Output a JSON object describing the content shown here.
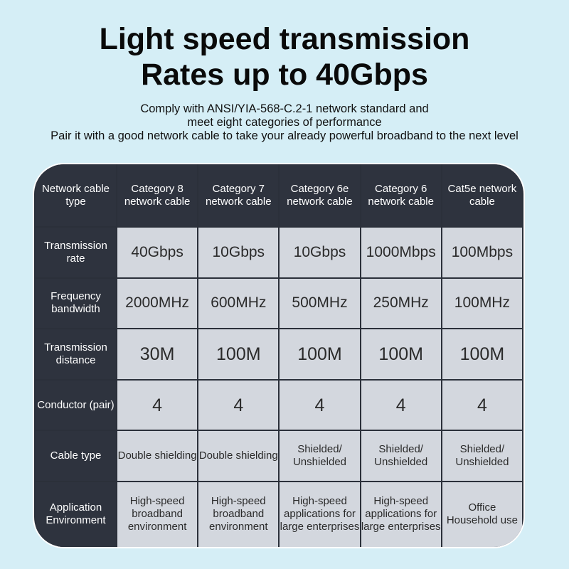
{
  "title": {
    "line1": "Light speed transmission",
    "line2": "Rates up to 40Gbps"
  },
  "subtitle": {
    "line1": "Comply with ANSI/YIA-568-C.2-1 network standard and",
    "line2": "meet eight categories of performance",
    "line3": "Pair it with a good network cable to take your already powerful broadband to the next level"
  },
  "table": {
    "header": [
      "Network cable type",
      "Category 8 network cable",
      "Category 7 network cable",
      "Category 6e network cable",
      "Category 6 network cable",
      "Cat5e network cable"
    ],
    "rows": [
      {
        "label": "Transmission rate",
        "values": [
          "40Gbps",
          "10Gbps",
          "10Gbps",
          "1000Mbps",
          "100Mbps"
        ]
      },
      {
        "label": "Frequency bandwidth",
        "values": [
          "2000MHz",
          "600MHz",
          "500MHz",
          "250MHz",
          "100MHz"
        ]
      },
      {
        "label": "Transmission distance",
        "values": [
          "30M",
          "100M",
          "100M",
          "100M",
          "100M"
        ]
      },
      {
        "label": "Conductor (pair)",
        "values": [
          "4",
          "4",
          "4",
          "4",
          "4"
        ]
      },
      {
        "label": "Cable type",
        "values": [
          "Double shielding",
          "Double shielding",
          "Shielded/ Unshielded",
          "Shielded/ Unshielded",
          "Shielded/ Unshielded"
        ]
      },
      {
        "label": "Application Environment",
        "values": [
          "High-speed broadband environment",
          "High-speed broadband environment",
          "High-speed applications for large enterprises",
          "High-speed applications for large enterprises",
          "Office Household use"
        ]
      }
    ]
  },
  "colors": {
    "background": "#d5eef6",
    "dark_cell": "#2e333e",
    "light_cell": "#d3d7de"
  }
}
